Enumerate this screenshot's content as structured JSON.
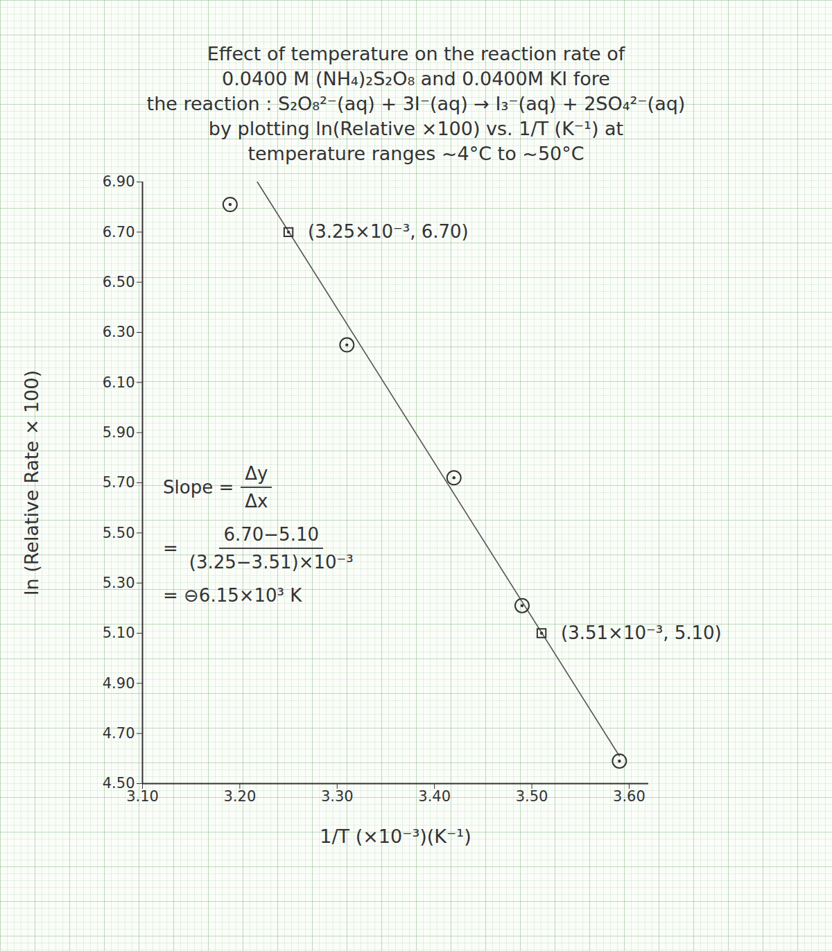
{
  "chart_data": {
    "type": "scatter",
    "title": [
      "Effect of temperature on the reaction rate of",
      "0.0400 M (NH₄)₂S₂O₈ and 0.0400M KI fore",
      "the reaction : S₂O₈²⁻(aq) + 3I⁻(aq) → I₃⁻(aq) + 2SO₄²⁻(aq)",
      "by plotting ln(Relative ×100) vs. 1/T (K⁻¹) at",
      "temperature ranges ~4°C to ~50°C"
    ],
    "x_label": "1/T (×10⁻³)(K⁻¹)",
    "y_label": "ln (Relative Rate × 100)",
    "xlim": [
      3.1,
      3.62
    ],
    "ylim": [
      4.5,
      6.9
    ],
    "xticks": [
      {
        "value": 3.1,
        "label": "3.10"
      },
      {
        "value": 3.2,
        "label": "3.20"
      },
      {
        "value": 3.3,
        "label": "3.30"
      },
      {
        "value": 3.4,
        "label": "3.40"
      },
      {
        "value": 3.5,
        "label": "3.50"
      },
      {
        "value": 3.6,
        "label": "3.60"
      }
    ],
    "yticks": [
      {
        "value": 4.5,
        "label": "4.50"
      },
      {
        "value": 4.7,
        "label": "4.70"
      },
      {
        "value": 4.9,
        "label": "4.90"
      },
      {
        "value": 5.1,
        "label": "5.10"
      },
      {
        "value": 5.3,
        "label": "5.30"
      },
      {
        "value": 5.5,
        "label": "5.50"
      },
      {
        "value": 5.7,
        "label": "5.70"
      },
      {
        "value": 5.9,
        "label": "5.90"
      },
      {
        "value": 6.1,
        "label": "6.10"
      },
      {
        "value": 6.3,
        "label": "6.30"
      },
      {
        "value": 6.5,
        "label": "6.50"
      },
      {
        "value": 6.7,
        "label": "6.70"
      },
      {
        "value": 6.9,
        "label": "6.90"
      }
    ],
    "grid": false,
    "series": [
      {
        "type": "line",
        "line_style": "solid",
        "color": "#555555",
        "x": [
          3.218,
          3.59
        ],
        "values": [
          6.9,
          4.61
        ]
      },
      {
        "type": "scatter",
        "marker": "circle",
        "color": "#333333",
        "x": [
          3.19,
          3.31,
          3.42,
          3.49,
          3.59
        ],
        "values": [
          6.81,
          6.25,
          5.72,
          5.21,
          4.59
        ]
      },
      {
        "type": "scatter",
        "marker": "square",
        "color": "#333333",
        "x": [
          3.25,
          3.51
        ],
        "values": [
          6.7,
          5.1
        ],
        "value_labels": [
          "(3.25×10⁻³, 6.70)",
          "(3.51×10⁻³, 5.10)"
        ]
      }
    ],
    "annotations": [
      {
        "label": "Slope =",
        "numerator": "Δy",
        "denominator": "Δx"
      },
      {
        "label": "=",
        "numerator": "6.70−5.10",
        "denominator": "(3.25−3.51)×10⁻³"
      },
      {
        "label": "= ⊖6.15×10³ K"
      }
    ]
  }
}
